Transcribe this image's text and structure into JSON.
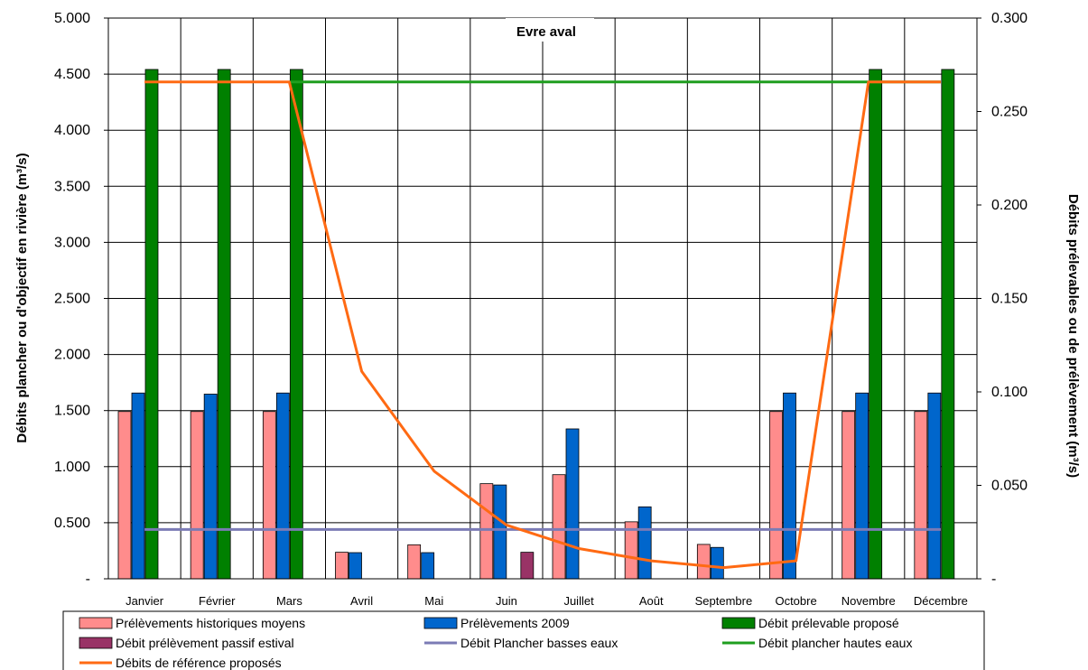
{
  "chart_data": {
    "type": "bar",
    "title": "Evre aval",
    "ylabel_left": "Débits plancher ou d'objectif en rivière (m³/s)",
    "ylabel_right": "Débits prélevables ou de prélèvement (m³/s)",
    "left_axis": {
      "min": 0,
      "max": 5,
      "step": 0.5,
      "tick_labels": [
        "-",
        "0.500",
        "1.000",
        "1.500",
        "2.000",
        "2.500",
        "3.000",
        "3.500",
        "4.000",
        "4.500",
        "5.000"
      ]
    },
    "right_axis": {
      "min": 0,
      "max": 0.3,
      "step": 0.05,
      "tick_labels": [
        "-",
        "0.050",
        "0.100",
        "0.150",
        "0.200",
        "0.250",
        "0.300"
      ]
    },
    "grid": true,
    "legend_position": "bottom",
    "categories": [
      "Janvier",
      "Février",
      "Mars",
      "Avril",
      "Mai",
      "Juin",
      "Juillet",
      "Août",
      "Septembre",
      "Octobre",
      "Novembre",
      "Décembre"
    ],
    "bar_series": [
      {
        "name": "Prélèvements historiques moyens",
        "color": "#FF8C8C",
        "axis": "right",
        "values": [
          0.0895,
          0.0895,
          0.0895,
          0.0142,
          0.0182,
          0.0509,
          0.0557,
          0.0305,
          0.0184,
          0.0895,
          0.0895,
          0.0895
        ]
      },
      {
        "name": "Prélèvements 2009",
        "color": "#0066CC",
        "axis": "right",
        "values": [
          0.0994,
          0.0988,
          0.0994,
          0.014,
          0.014,
          0.0502,
          0.0802,
          0.0385,
          0.0168,
          0.0994,
          0.0994,
          0.0994
        ]
      },
      {
        "name": "Débit prélevable proposé",
        "color": "#008000",
        "axis": "right",
        "values": [
          0.2725,
          0.2725,
          0.2725,
          0,
          0,
          0,
          0,
          0,
          0,
          0,
          0.2725,
          0.2725
        ]
      },
      {
        "name": "Débit prélèvement passif estival",
        "color": "#993366",
        "axis": "right",
        "values": [
          0,
          0,
          0,
          0,
          0,
          0.0142,
          0,
          0,
          0,
          0,
          0,
          0
        ]
      }
    ],
    "line_series": [
      {
        "name": "Débit Plancher basses eaux",
        "color": "#7B7BB5",
        "axis": "left",
        "months": [
          0,
          11
        ],
        "values": [
          0.44,
          0.44,
          0.44,
          0.44,
          0.44,
          0.44,
          0.44,
          0.44,
          0.44,
          0.44,
          0.44,
          0.44
        ]
      },
      {
        "name": "Débit plancher hautes eaux",
        "color": "#1F9E1F",
        "axis": "left",
        "months": [
          2,
          11
        ],
        "values": [
          4.43,
          4.43,
          4.43,
          4.43,
          4.43,
          4.43,
          4.43,
          4.43,
          4.43,
          4.43
        ]
      },
      {
        "name": "Débits de référence proposés",
        "color": "#FF6A13",
        "axis": "left",
        "months": [
          0,
          11
        ],
        "values": [
          4.43,
          4.43,
          4.43,
          1.85,
          0.96,
          0.48,
          0.27,
          0.16,
          0.1,
          0.16,
          4.43,
          4.43
        ]
      }
    ],
    "legend": [
      {
        "label": "Prélèvements historiques moyens",
        "kind": "bar",
        "color": "#FF8C8C"
      },
      {
        "label": "Prélèvements 2009",
        "kind": "bar",
        "color": "#0066CC"
      },
      {
        "label": "Débit prélevable proposé",
        "kind": "bar",
        "color": "#008000"
      },
      {
        "label": "Débit prélèvement passif estival",
        "kind": "bar",
        "color": "#993366"
      },
      {
        "label": "Débit Plancher basses eaux",
        "kind": "line",
        "color": "#7B7BB5"
      },
      {
        "label": "Débit plancher hautes eaux",
        "kind": "line",
        "color": "#1F9E1F"
      },
      {
        "label": "Débits de référence proposés",
        "kind": "line",
        "color": "#FF6A13"
      }
    ]
  }
}
